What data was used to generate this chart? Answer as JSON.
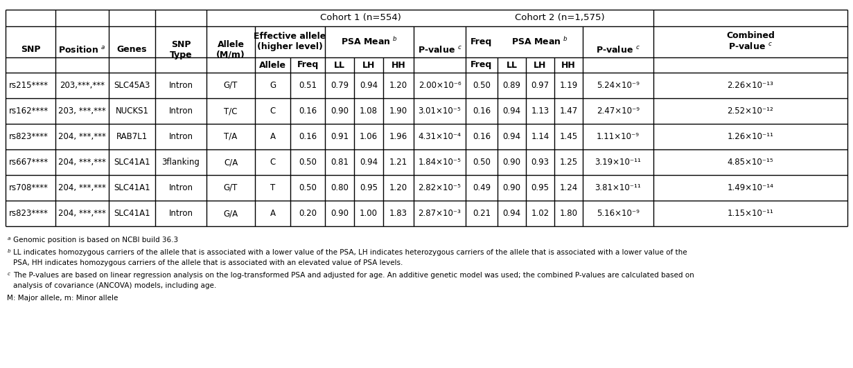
{
  "footnotes": [
    [
      "a",
      " Genomic position is based on NCBI build 36.3"
    ],
    [
      "b",
      " LL indicates homozygous carriers of the allele that is associated with a lower value of the PSA, LH indicates heterozygous carriers of the allele that is associated with a lower value of the\n   PSA, HH indicates homozygous carriers of the allele that is associated with an elevated value of PSA levels."
    ],
    [
      "c",
      " The P-values are based on linear regression analysis on the log-transformed PSA and adjusted for age. An additive genetic model was used; the combined P-values are calculated based on\n   analysis of covariance (ANCOVA) models, including age."
    ],
    [
      "",
      "M: Major allele, m: Minor allele"
    ]
  ],
  "rows": [
    [
      "rs215****",
      "203,***,***",
      "SLC45A3",
      "Intron",
      "G/T",
      "G",
      "0.51",
      "0.79",
      "0.94",
      "1.20",
      "2.00×10⁻⁶",
      "0.50",
      "0.89",
      "0.97",
      "1.19",
      "5.24×10⁻⁹",
      "2.26×10⁻¹³"
    ],
    [
      "rs162****",
      "203, ***,***",
      "NUCKS1",
      "Intron",
      "T/C",
      "C",
      "0.16",
      "0.90",
      "1.08",
      "1.90",
      "3.01×10⁻⁵",
      "0.16",
      "0.94",
      "1.13",
      "1.47",
      "2.47×10⁻⁹",
      "2.52×10⁻¹²"
    ],
    [
      "rs823****",
      "204, ***,***",
      "RAB7L1",
      "Intron",
      "T/A",
      "A",
      "0.16",
      "0.91",
      "1.06",
      "1.96",
      "4.31×10⁻⁴",
      "0.16",
      "0.94",
      "1.14",
      "1.45",
      "1.11×10⁻⁹",
      "1.26×10⁻¹¹"
    ],
    [
      "rs667****",
      "204, ***,***",
      "SLC41A1",
      "3flanking",
      "C/A",
      "C",
      "0.50",
      "0.81",
      "0.94",
      "1.21",
      "1.84×10⁻⁵",
      "0.50",
      "0.90",
      "0.93",
      "1.25",
      "3.19×10⁻¹¹",
      "4.85×10⁻¹⁵"
    ],
    [
      "rs708****",
      "204, ***,***",
      "SLC41A1",
      "Intron",
      "G/T",
      "T",
      "0.50",
      "0.80",
      "0.95",
      "1.20",
      "2.82×10⁻⁵",
      "0.49",
      "0.90",
      "0.95",
      "1.24",
      "3.81×10⁻¹¹",
      "1.49×10⁻¹⁴"
    ],
    [
      "rs823****",
      "204, ***,***",
      "SLC41A1",
      "Intron",
      "G/A",
      "A",
      "0.20",
      "0.90",
      "1.00",
      "1.83",
      "2.87×10⁻³",
      "0.21",
      "0.94",
      "1.02",
      "1.80",
      "5.16×10⁻⁹",
      "1.15×10⁻¹¹"
    ]
  ],
  "col_edges": [
    8,
    80,
    157,
    224,
    298,
    368,
    419,
    469,
    511,
    553,
    597,
    672,
    718,
    759,
    800,
    841,
    943,
    1057,
    1223
  ],
  "row_edges": [
    14,
    38,
    83,
    105,
    142,
    179,
    216,
    253,
    290,
    327
  ],
  "lw": 1.0,
  "fs_title": 9.5,
  "fs_hdr": 9.0,
  "fs_data": 8.5,
  "fs_foot": 7.5
}
